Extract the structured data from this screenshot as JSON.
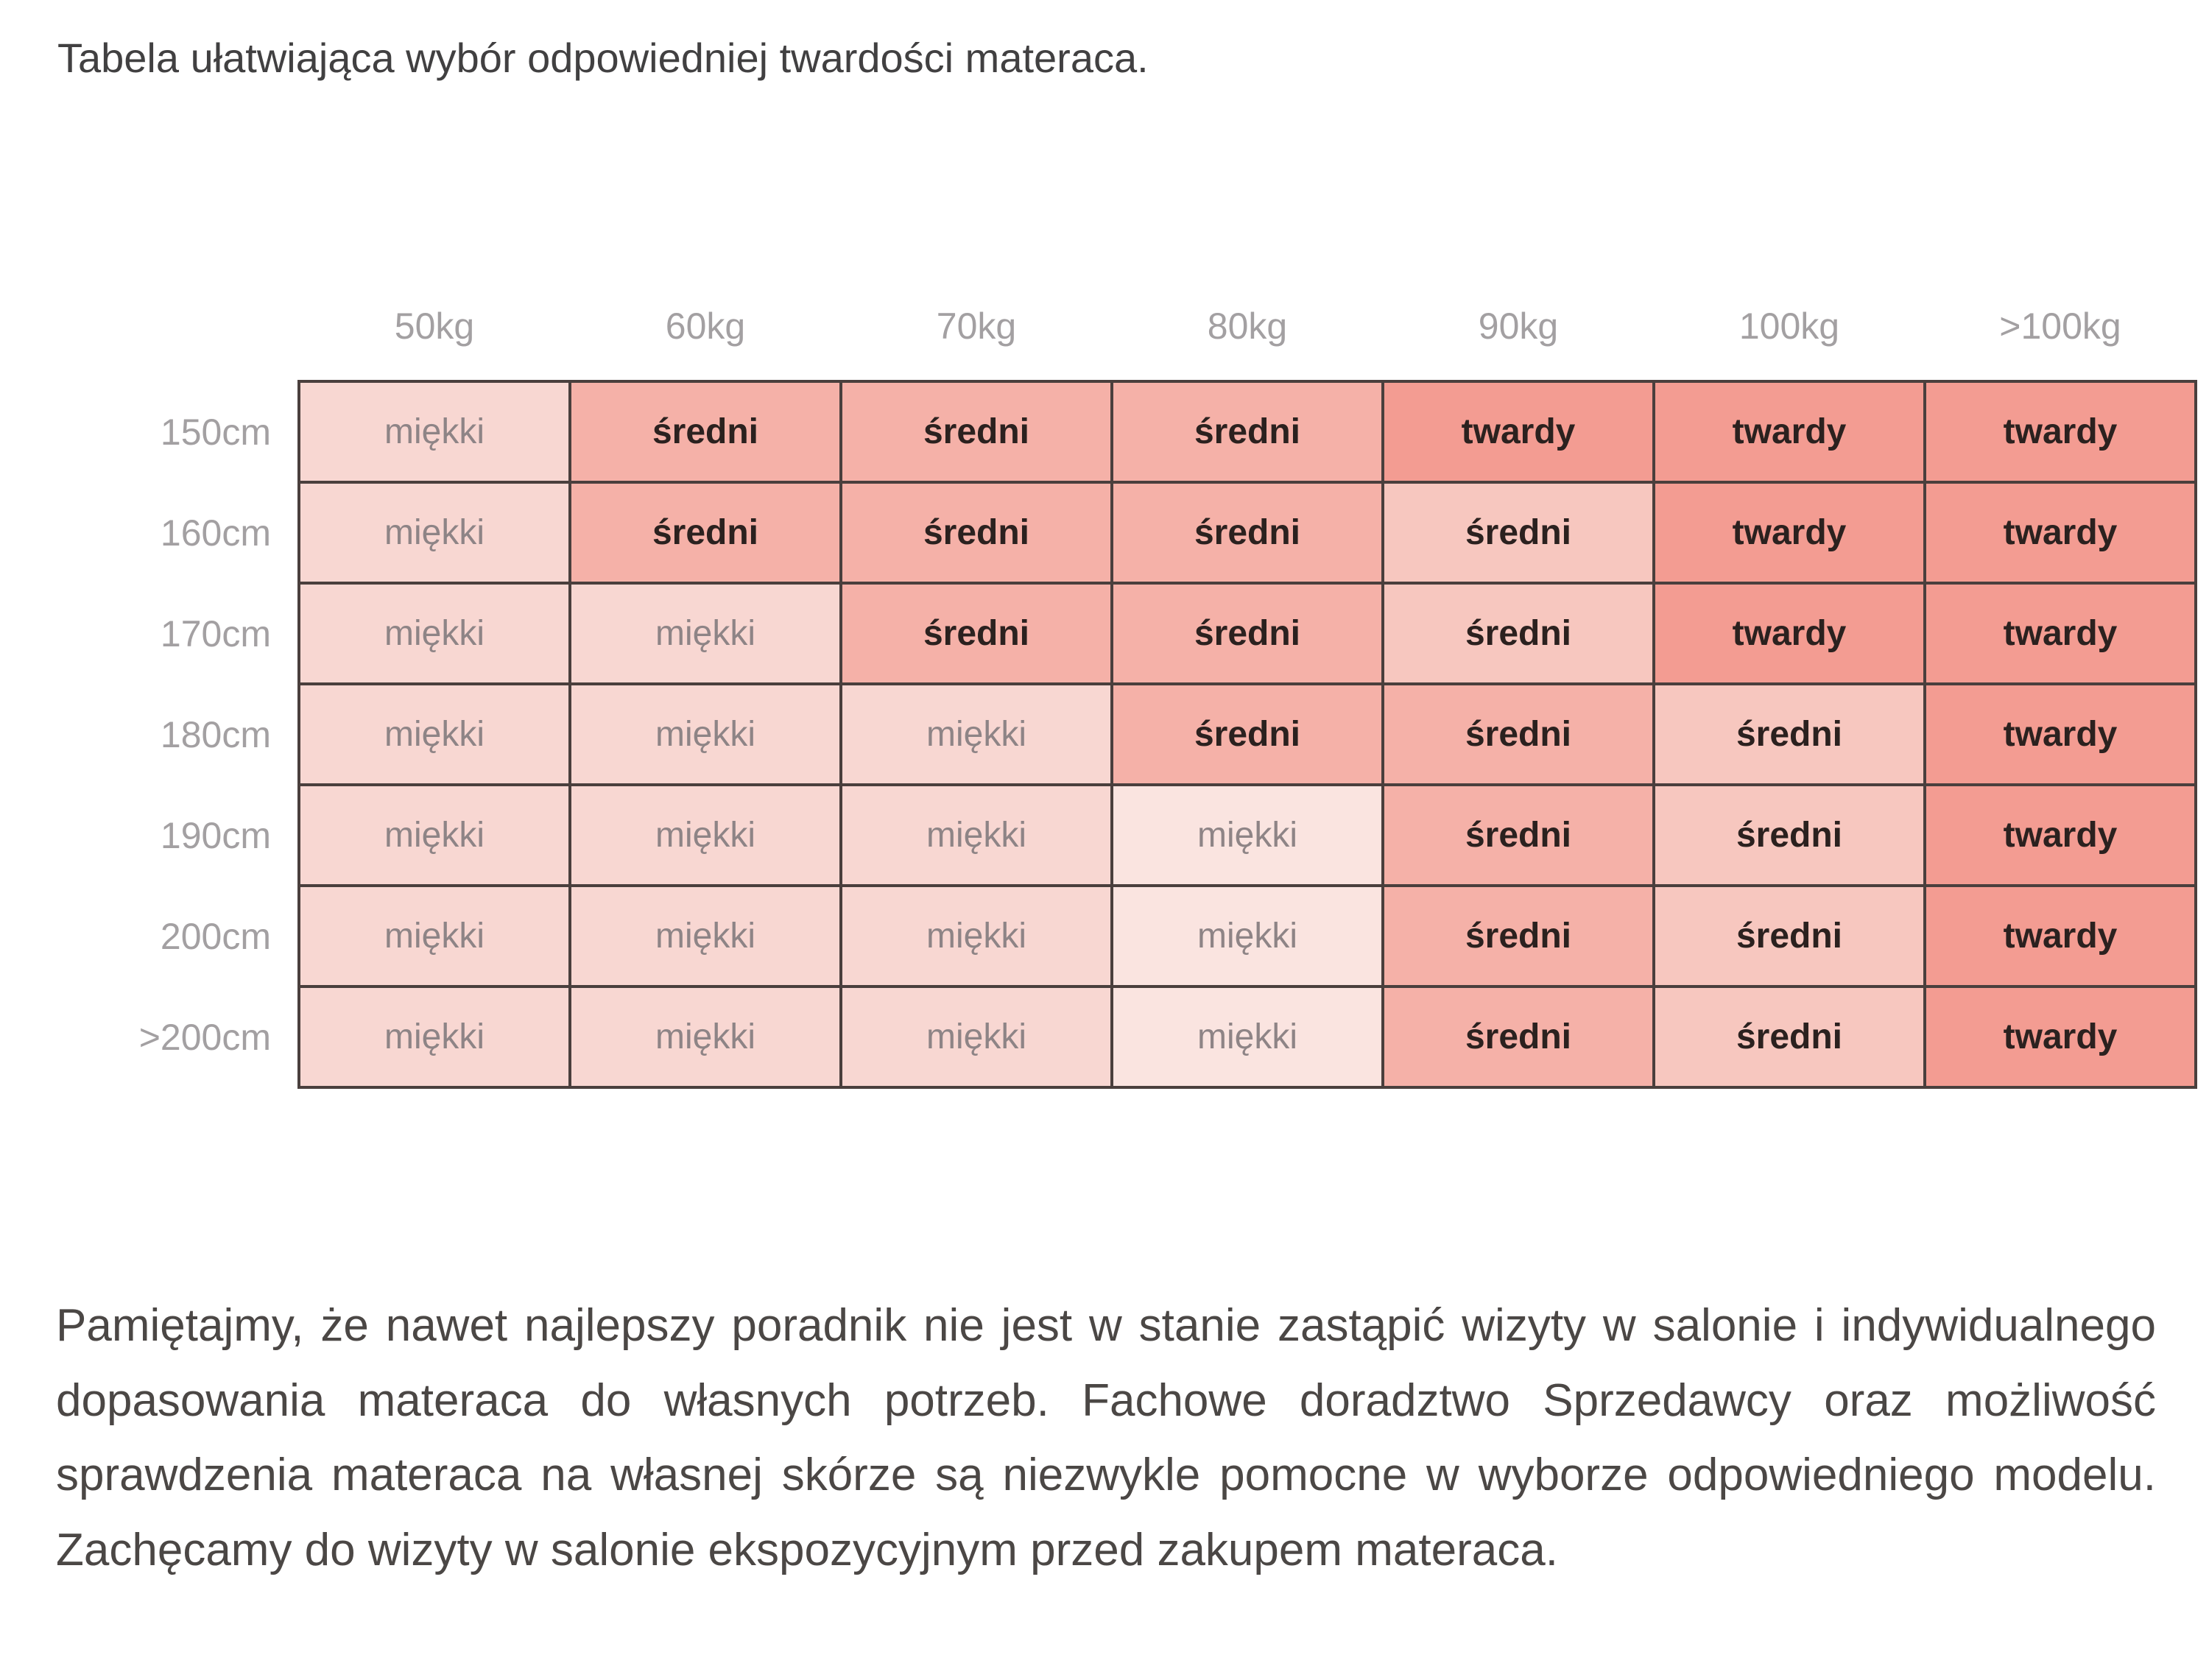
{
  "title": "Tabela ułatwiająca wybór odpowiedniej twardości materaca.",
  "table": {
    "corner_label": "",
    "weight_headers": [
      "50kg",
      "60kg",
      "70kg",
      "80kg",
      "90kg",
      "100kg",
      ">100kg"
    ],
    "rows": [
      {
        "height": "150cm",
        "cells": [
          {
            "label": "miękki",
            "variant": "soft"
          },
          {
            "label": "średni",
            "variant": "medium"
          },
          {
            "label": "średni",
            "variant": "medium"
          },
          {
            "label": "średni",
            "variant": "medium"
          },
          {
            "label": "twardy",
            "variant": "hard"
          },
          {
            "label": "twardy",
            "variant": "hard"
          },
          {
            "label": "twardy",
            "variant": "hard"
          }
        ]
      },
      {
        "height": "160cm",
        "cells": [
          {
            "label": "miękki",
            "variant": "soft"
          },
          {
            "label": "średni",
            "variant": "medium"
          },
          {
            "label": "średni",
            "variant": "medium"
          },
          {
            "label": "średni",
            "variant": "medium"
          },
          {
            "label": "średni",
            "variant": "medium_light"
          },
          {
            "label": "twardy",
            "variant": "hard"
          },
          {
            "label": "twardy",
            "variant": "hard"
          }
        ]
      },
      {
        "height": "170cm",
        "cells": [
          {
            "label": "miękki",
            "variant": "soft"
          },
          {
            "label": "miękki",
            "variant": "soft"
          },
          {
            "label": "średni",
            "variant": "medium"
          },
          {
            "label": "średni",
            "variant": "medium"
          },
          {
            "label": "średni",
            "variant": "medium_light"
          },
          {
            "label": "twardy",
            "variant": "hard"
          },
          {
            "label": "twardy",
            "variant": "hard"
          }
        ]
      },
      {
        "height": "180cm",
        "cells": [
          {
            "label": "miękki",
            "variant": "soft"
          },
          {
            "label": "miękki",
            "variant": "soft"
          },
          {
            "label": "miękki",
            "variant": "soft"
          },
          {
            "label": "średni",
            "variant": "medium"
          },
          {
            "label": "średni",
            "variant": "medium"
          },
          {
            "label": "średni",
            "variant": "medium_light"
          },
          {
            "label": "twardy",
            "variant": "hard"
          }
        ]
      },
      {
        "height": "190cm",
        "cells": [
          {
            "label": "miękki",
            "variant": "soft"
          },
          {
            "label": "miękki",
            "variant": "soft"
          },
          {
            "label": "miękki",
            "variant": "soft"
          },
          {
            "label": "miękki",
            "variant": "soft_light"
          },
          {
            "label": "średni",
            "variant": "medium"
          },
          {
            "label": "średni",
            "variant": "medium_light"
          },
          {
            "label": "twardy",
            "variant": "hard"
          }
        ]
      },
      {
        "height": "200cm",
        "cells": [
          {
            "label": "miękki",
            "variant": "soft"
          },
          {
            "label": "miękki",
            "variant": "soft"
          },
          {
            "label": "miękki",
            "variant": "soft"
          },
          {
            "label": "miękki",
            "variant": "soft_light"
          },
          {
            "label": "średni",
            "variant": "medium"
          },
          {
            "label": "średni",
            "variant": "medium_light"
          },
          {
            "label": "twardy",
            "variant": "hard"
          }
        ]
      },
      {
        "height": ">200cm",
        "cells": [
          {
            "label": "miękki",
            "variant": "soft"
          },
          {
            "label": "miękki",
            "variant": "soft"
          },
          {
            "label": "miękki",
            "variant": "soft"
          },
          {
            "label": "miękki",
            "variant": "soft_light"
          },
          {
            "label": "średni",
            "variant": "medium"
          },
          {
            "label": "średni",
            "variant": "medium_light"
          },
          {
            "label": "twardy",
            "variant": "hard"
          }
        ]
      }
    ]
  },
  "firmness_levels": {
    "soft": "miękki",
    "medium": "średni",
    "hard": "twardy"
  },
  "colors": {
    "soft_bg": "#f8d7d2",
    "soft_light_bg": "#fae4e0",
    "medium_bg": "#f5b1a8",
    "medium_light_bg": "#f7c7bf",
    "hard_bg": "#f39c92",
    "grid_border": "#4a3f3d",
    "soft_text": "#8e8486",
    "firm_text": "#2b211f",
    "axis_label_text": "#a3a0a2",
    "title_text": "#414041",
    "paragraph_text": "#4b4745"
  },
  "footer_paragraph": "Pamiętajmy, że nawet najlepszy poradnik nie jest w stanie zastąpić wizyty w salonie i indywidualnego dopasowania materaca do własnych potrzeb. Fachowe doradztwo Sprzedawcy oraz możliwość sprawdzenia materaca na własnej skórze są niezwykle pomocne w wyborze odpowiedniego modelu. Zachęcamy do wizyty w salonie ekspozycyjnym przed zakupem materaca."
}
